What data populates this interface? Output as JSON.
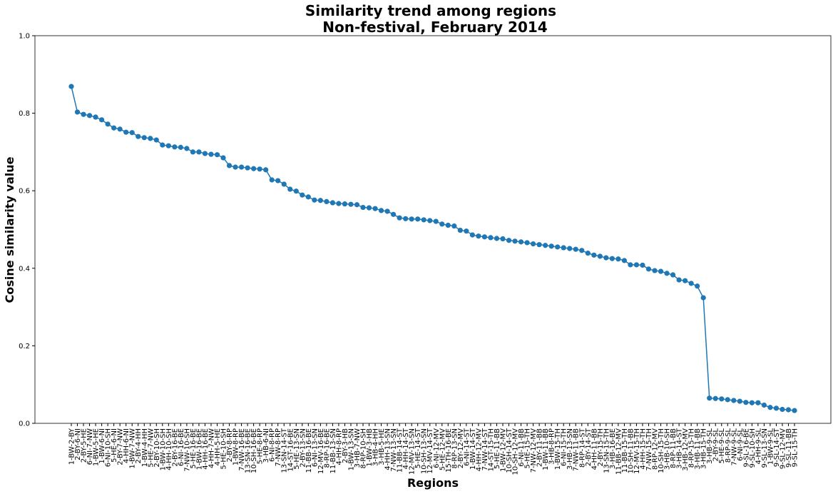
{
  "chart_data": {
    "type": "line",
    "title": [
      "Similarity trend among regions",
      "Non-festival, February 2014"
    ],
    "xlabel": "Regions",
    "ylabel": "Cosine similarity value",
    "categories": [
      "1-BW-2-BY",
      "2-BY-6-NI",
      "2-BY-5-HE",
      "6-NI-7-NW",
      "1-BW-5-HE",
      "1-BW-6-NI",
      "6-NI-10-SH",
      "5-HE-6-NI",
      "2-BY-7-NW",
      "4-HH-6-NI",
      "1-BW-7-NW",
      "2-BY-4-HH",
      "1-BW-4-HH",
      "5-HE-7-NW",
      "2-BY-10-SH",
      "1-BW-10-SH",
      "4-HH-10-SH",
      "2-BY-16-BE",
      "6-NI-16-BE",
      "7-NW-10-SH",
      "5-HE-16-BE",
      "1-BW-16-BE",
      "4-HH-16-BE",
      "4-HH-7-NW",
      "4-HH-5-HE",
      "5-HE-10-SH",
      "2-BY-8-RP",
      "1-BW-8-RP",
      "7-NW-16-BE",
      "13-SN-16-BE",
      "10-SH-16-BE",
      "5-HE-8-RP",
      "3-HB-6-NI",
      "6-NI-8-RP",
      "7-NW-8-RP",
      "13-SN-14-ST",
      "14-ST-16-BE",
      "5-HE-13-SN",
      "2-BY-13-SN",
      "11-BB-16-BE",
      "6-NI-13-SN",
      "12-MV-16-BE",
      "8-RP-16-BE",
      "11-BB-13-SN",
      "4-HH-8-RP",
      "2-BY-3-HB",
      "1-BW-13-SN",
      "3-HB-7-NW",
      "8-RP-10-SH",
      "1-BW-3-HB",
      "3-HB-4-HH",
      "3-HB-5-HE",
      "4-HH-13-SN",
      "7-NW-13-SN",
      "11-BB-14-ST",
      "4-HH-14-ST",
      "12-MV-13-SN",
      "5-HE-14-ST",
      "10-SH-13-SN",
      "12-MV-14-ST",
      "6-NI-12-MV",
      "5-HE-12-MV",
      "15-TH-16-BE",
      "8-RP-13-SN",
      "2-BY-12-MV",
      "6-NI-14-ST",
      "1-BW-14-ST",
      "4-HH-12-MV",
      "7-NW-14-ST",
      "14-ST-15-TH",
      "5-HE-11-BB",
      "1-BW-12-MV",
      "10-SH-14-ST",
      "10-SH-12-MV",
      "6-NI-11-BB",
      "5-HE-15-TH",
      "7-NW-12-MV",
      "2-BY-11-BB",
      "1-BW-11-BB",
      "3-HB-8-RP",
      "1-BW-15-TH",
      "6-NI-15-TH",
      "3-HB-13-SN",
      "7-NW-11-BB",
      "8-RP-14-ST",
      "2-BY-14-ST",
      "4-HH-11-BB",
      "2-BY-15-TH",
      "13-SN-15-TH",
      "3-HB-16-BE",
      "11-BB-12-MV",
      "11-BB-15-TH",
      "10-SH-11-BB",
      "12-MV-15-TH",
      "4-HH-15-TH",
      "7-NW-15-TH",
      "8-RP-12-MV",
      "10-SH-15-TH",
      "3-HB-10-SH",
      "8-RP-11-BB",
      "3-HB-14-ST",
      "3-HB-12-MV",
      "8-RP-15-TH",
      "3-HB-11-BB",
      "3-HB-15-TH",
      "3-HB-9-SL",
      "2-BY-9-SL",
      "5-HE-9-SL",
      "8-RP-9-SL",
      "7-NW-9-SL",
      "6-NI-9-SL",
      "9-SL-16-BE",
      "9-SL-10-SH",
      "4-HH-9-SL",
      "9-SL-13-SN",
      "1-BW-9-SL",
      "9-SL-14-ST",
      "9-SL-12-MV",
      "9-SL-11-BB",
      "9-SL-15-TH"
    ],
    "series": [
      {
        "name": "Cosine similarity",
        "color": "#1f77b4",
        "values": [
          0.869,
          0.803,
          0.797,
          0.794,
          0.79,
          0.783,
          0.772,
          0.762,
          0.759,
          0.751,
          0.75,
          0.74,
          0.737,
          0.735,
          0.731,
          0.718,
          0.716,
          0.713,
          0.712,
          0.709,
          0.7,
          0.7,
          0.696,
          0.694,
          0.693,
          0.685,
          0.665,
          0.661,
          0.661,
          0.659,
          0.657,
          0.656,
          0.654,
          0.628,
          0.626,
          0.617,
          0.604,
          0.599,
          0.589,
          0.584,
          0.576,
          0.575,
          0.572,
          0.569,
          0.567,
          0.566,
          0.565,
          0.564,
          0.557,
          0.556,
          0.554,
          0.549,
          0.547,
          0.539,
          0.53,
          0.528,
          0.527,
          0.527,
          0.525,
          0.523,
          0.521,
          0.514,
          0.511,
          0.509,
          0.498,
          0.496,
          0.486,
          0.483,
          0.481,
          0.479,
          0.477,
          0.476,
          0.472,
          0.47,
          0.468,
          0.466,
          0.463,
          0.461,
          0.459,
          0.457,
          0.455,
          0.453,
          0.451,
          0.449,
          0.446,
          0.439,
          0.434,
          0.431,
          0.427,
          0.425,
          0.424,
          0.42,
          0.409,
          0.409,
          0.408,
          0.398,
          0.394,
          0.392,
          0.387,
          0.383,
          0.37,
          0.368,
          0.361,
          0.354,
          0.324,
          0.065,
          0.064,
          0.063,
          0.061,
          0.059,
          0.057,
          0.054,
          0.053,
          0.053,
          0.047,
          0.041,
          0.039,
          0.036,
          0.035,
          0.033
        ]
      }
    ],
    "ylim": [
      0,
      1
    ],
    "yticks": [
      {
        "value": 0,
        "label": "0.0"
      },
      0.2,
      0.4,
      0.6,
      0.8,
      {
        "value": 1,
        "label": "1.0"
      }
    ],
    "grid": false
  }
}
